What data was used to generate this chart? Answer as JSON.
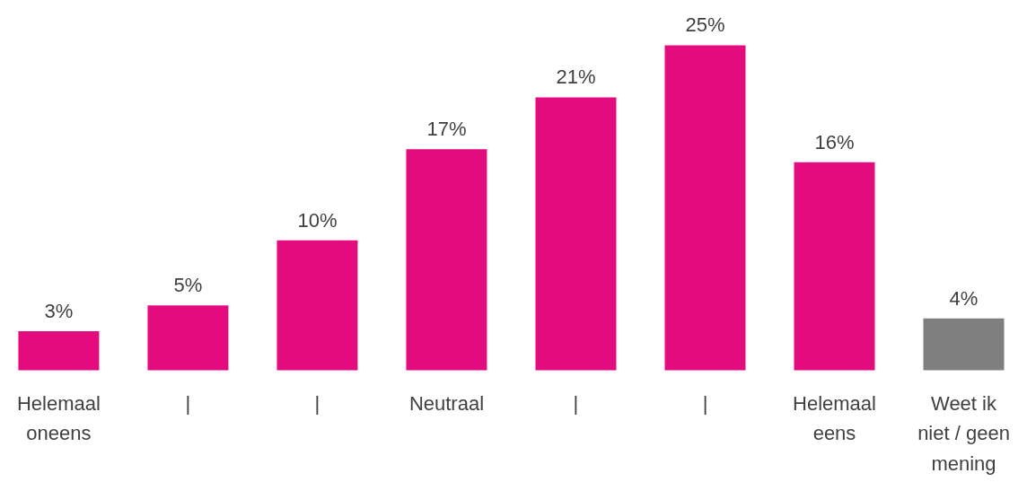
{
  "chart_data": {
    "type": "bar",
    "categories": [
      "Helemaal oneens",
      "|",
      "|",
      "Neutraal",
      "|",
      "|",
      "Helemaal eens",
      "Weet ik niet / geen mening"
    ],
    "values": [
      3,
      5,
      10,
      17,
      21,
      25,
      16,
      4
    ],
    "colors": [
      "#e30b7e",
      "#e30b7e",
      "#e30b7e",
      "#e30b7e",
      "#e30b7e",
      "#e30b7e",
      "#e30b7e",
      "#7f7f7f"
    ],
    "value_labels": [
      "3%",
      "5%",
      "10%",
      "17%",
      "21%",
      "25%",
      "16%",
      "4%"
    ],
    "grid": false
  }
}
